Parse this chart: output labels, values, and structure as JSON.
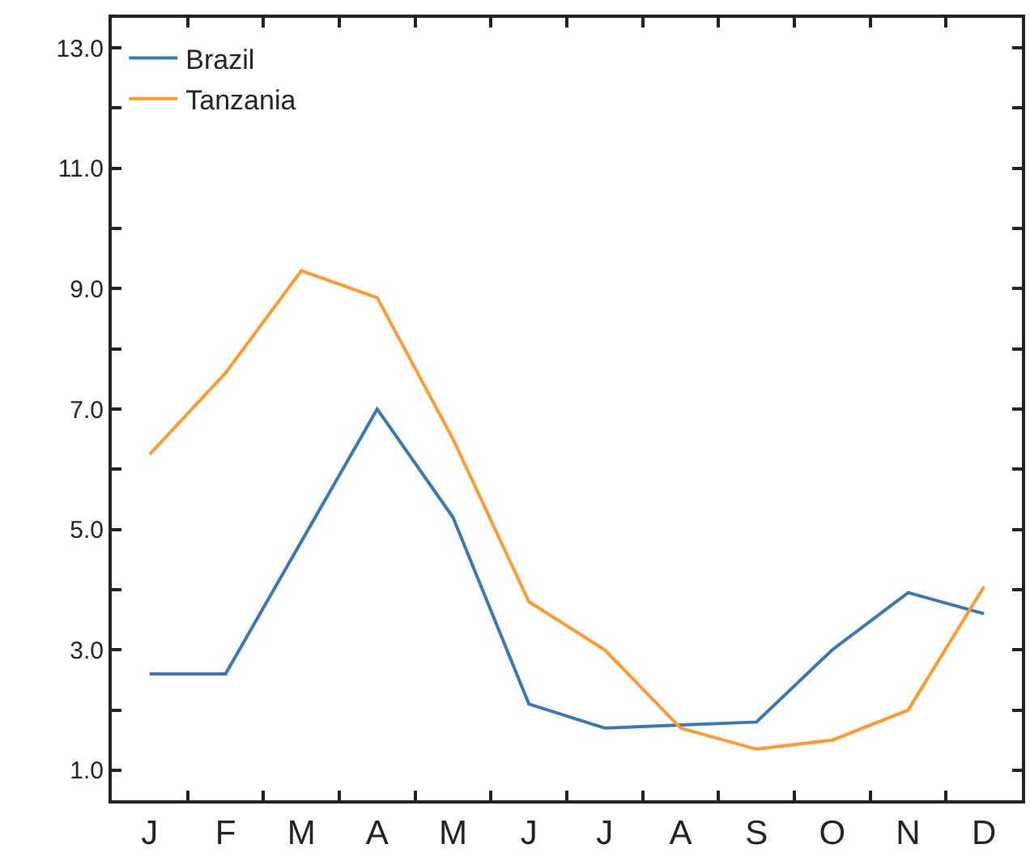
{
  "chart_data": {
    "type": "line",
    "categories": [
      "J",
      "F",
      "M",
      "A",
      "M",
      "J",
      "J",
      "A",
      "S",
      "O",
      "N",
      "D"
    ],
    "series": [
      {
        "name": "Brazil",
        "color": "#3a78b5",
        "values": [
          2.6,
          2.6,
          4.8,
          7.0,
          5.2,
          2.1,
          1.7,
          1.75,
          1.8,
          3.0,
          3.95,
          3.6
        ]
      },
      {
        "name": "Tanzania",
        "color": "#ff9a2e",
        "values": [
          6.25,
          7.6,
          9.3,
          8.85,
          6.5,
          3.8,
          3.0,
          1.7,
          1.35,
          1.5,
          2.0,
          4.05
        ]
      }
    ],
    "ylim": [
      0.5,
      13.5
    ],
    "yticks": [
      {
        "value": 1,
        "label": "1.0"
      },
      {
        "value": 2,
        "label": null
      },
      {
        "value": 3,
        "label": "3.0"
      },
      {
        "value": 4,
        "label": null
      },
      {
        "value": 5,
        "label": "5.0"
      },
      {
        "value": 6,
        "label": null
      },
      {
        "value": 7,
        "label": "7.0"
      },
      {
        "value": 8,
        "label": null
      },
      {
        "value": 9,
        "label": "9.0"
      },
      {
        "value": 10,
        "label": null
      },
      {
        "value": 11,
        "label": "11.0"
      },
      {
        "value": 12,
        "label": null
      },
      {
        "value": 13,
        "label": "13.0"
      }
    ],
    "legend": "top left",
    "marker": "none",
    "line_style": "solid"
  }
}
